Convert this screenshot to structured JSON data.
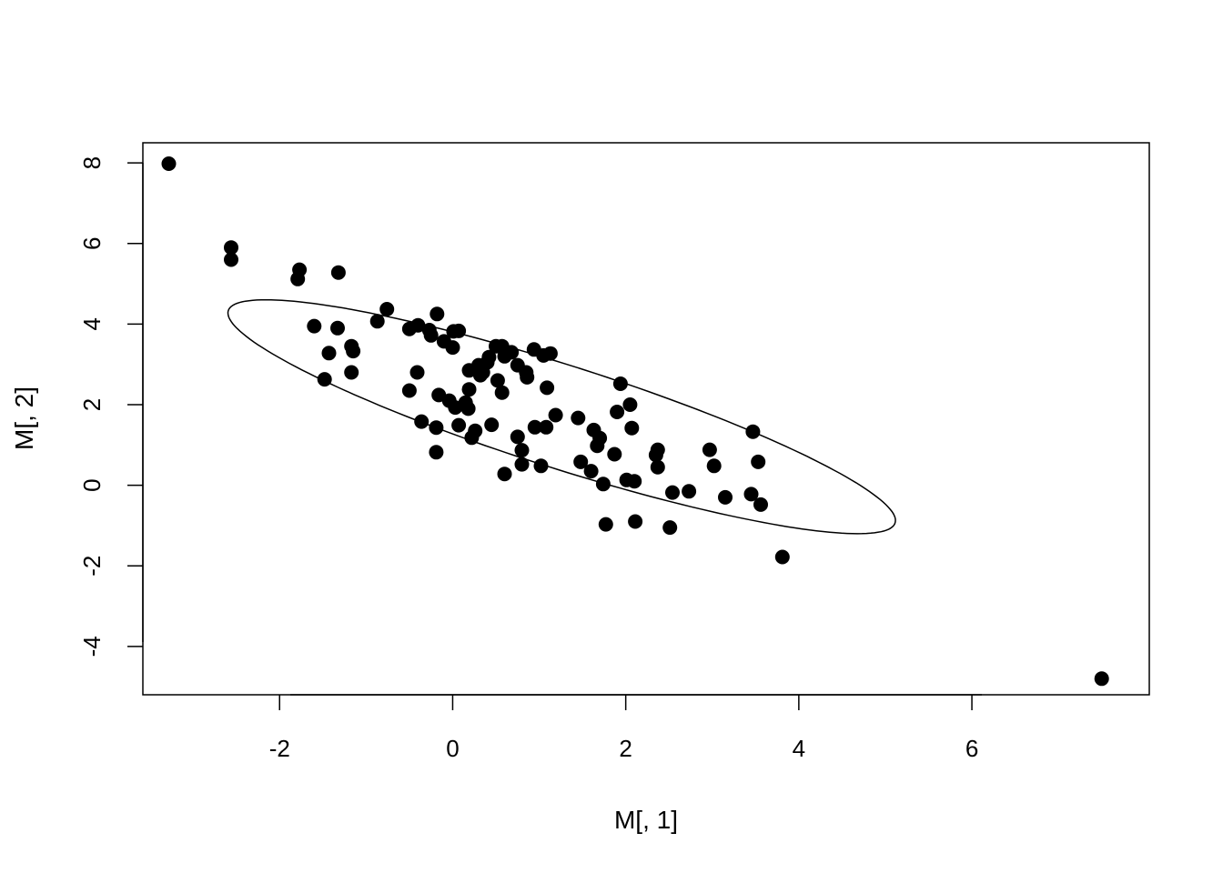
{
  "chart_data": {
    "type": "scatter",
    "title": "",
    "xlabel": "M[, 1]",
    "ylabel": "M[, 2]",
    "xlim": [
      -3.58,
      8.05
    ],
    "ylim": [
      -5.2,
      8.5
    ],
    "x_ticks": [
      -2,
      0,
      2,
      4,
      6
    ],
    "x_tick_labels": [
      "-2",
      "0",
      "2",
      "4",
      "6"
    ],
    "y_ticks": [
      -4,
      -2,
      0,
      2,
      4,
      6,
      8
    ],
    "y_tick_labels": [
      "-4",
      "-2",
      "0",
      "2",
      "4",
      "6",
      "8"
    ],
    "grid": false,
    "legend": "none",
    "marker_color": "#000000",
    "ellipse": {
      "center": [
        1.26,
        1.7
      ],
      "semi_major": 4.7,
      "semi_minor": 1.1,
      "angle_deg": -36
    },
    "points": [
      {
        "x": -3.28,
        "y": 7.98
      },
      {
        "x": 7.5,
        "y": -4.8
      },
      {
        "x": -2.56,
        "y": 5.9
      },
      {
        "x": -2.56,
        "y": 5.6
      },
      {
        "x": -1.77,
        "y": 5.35
      },
      {
        "x": -1.79,
        "y": 5.12
      },
      {
        "x": -1.32,
        "y": 5.28
      },
      {
        "x": -1.6,
        "y": 3.95
      },
      {
        "x": -1.33,
        "y": 3.9
      },
      {
        "x": -1.43,
        "y": 3.28
      },
      {
        "x": -1.17,
        "y": 3.45
      },
      {
        "x": -1.15,
        "y": 3.33
      },
      {
        "x": -1.48,
        "y": 2.63
      },
      {
        "x": -1.17,
        "y": 2.8
      },
      {
        "x": -0.87,
        "y": 4.07
      },
      {
        "x": -0.76,
        "y": 4.37
      },
      {
        "x": -0.5,
        "y": 3.88
      },
      {
        "x": -0.4,
        "y": 3.97
      },
      {
        "x": -0.27,
        "y": 3.85
      },
      {
        "x": -0.25,
        "y": 3.72
      },
      {
        "x": -0.18,
        "y": 4.25
      },
      {
        "x": -0.1,
        "y": 3.57
      },
      {
        "x": 0.0,
        "y": 3.42
      },
      {
        "x": 0.01,
        "y": 3.82
      },
      {
        "x": 0.07,
        "y": 3.83
      },
      {
        "x": -0.41,
        "y": 2.8
      },
      {
        "x": -0.5,
        "y": 2.35
      },
      {
        "x": -0.36,
        "y": 1.58
      },
      {
        "x": -0.16,
        "y": 2.24
      },
      {
        "x": -0.04,
        "y": 2.1
      },
      {
        "x": 0.03,
        "y": 1.93
      },
      {
        "x": 0.15,
        "y": 2.05
      },
      {
        "x": 0.18,
        "y": 1.9
      },
      {
        "x": -0.19,
        "y": 1.43
      },
      {
        "x": 0.07,
        "y": 1.49
      },
      {
        "x": 0.26,
        "y": 1.35
      },
      {
        "x": 0.22,
        "y": 1.18
      },
      {
        "x": -0.19,
        "y": 0.82
      },
      {
        "x": 0.19,
        "y": 2.85
      },
      {
        "x": 0.19,
        "y": 2.38
      },
      {
        "x": 0.3,
        "y": 2.98
      },
      {
        "x": 0.32,
        "y": 2.73
      },
      {
        "x": 0.35,
        "y": 2.8
      },
      {
        "x": 0.4,
        "y": 3.05
      },
      {
        "x": 0.42,
        "y": 3.18
      },
      {
        "x": 0.5,
        "y": 3.45
      },
      {
        "x": 0.57,
        "y": 3.45
      },
      {
        "x": 0.6,
        "y": 3.2
      },
      {
        "x": 0.68,
        "y": 3.3
      },
      {
        "x": 0.75,
        "y": 2.98
      },
      {
        "x": 0.85,
        "y": 2.8
      },
      {
        "x": 0.86,
        "y": 2.68
      },
      {
        "x": 0.52,
        "y": 2.6
      },
      {
        "x": 0.57,
        "y": 2.3
      },
      {
        "x": 0.45,
        "y": 1.5
      },
      {
        "x": 0.94,
        "y": 3.37
      },
      {
        "x": 1.05,
        "y": 3.22
      },
      {
        "x": 1.13,
        "y": 3.27
      },
      {
        "x": 1.09,
        "y": 2.42
      },
      {
        "x": 0.95,
        "y": 1.44
      },
      {
        "x": 1.08,
        "y": 1.44
      },
      {
        "x": 1.19,
        "y": 1.74
      },
      {
        "x": 0.75,
        "y": 1.2
      },
      {
        "x": 0.8,
        "y": 0.87
      },
      {
        "x": 0.8,
        "y": 0.52
      },
      {
        "x": 1.02,
        "y": 0.48
      },
      {
        "x": 0.6,
        "y": 0.28
      },
      {
        "x": 1.45,
        "y": 1.67
      },
      {
        "x": 1.63,
        "y": 1.37
      },
      {
        "x": 1.7,
        "y": 1.17
      },
      {
        "x": 1.67,
        "y": 0.98
      },
      {
        "x": 1.48,
        "y": 0.58
      },
      {
        "x": 1.6,
        "y": 0.35
      },
      {
        "x": 1.74,
        "y": 0.03
      },
      {
        "x": 1.77,
        "y": -0.97
      },
      {
        "x": 1.94,
        "y": 2.52
      },
      {
        "x": 2.05,
        "y": 2.0
      },
      {
        "x": 1.9,
        "y": 1.82
      },
      {
        "x": 2.07,
        "y": 1.42
      },
      {
        "x": 1.87,
        "y": 0.77
      },
      {
        "x": 2.01,
        "y": 0.13
      },
      {
        "x": 2.1,
        "y": 0.1
      },
      {
        "x": 2.11,
        "y": -0.9
      },
      {
        "x": 2.37,
        "y": 0.88
      },
      {
        "x": 2.35,
        "y": 0.75
      },
      {
        "x": 2.37,
        "y": 0.45
      },
      {
        "x": 2.54,
        "y": -0.18
      },
      {
        "x": 2.51,
        "y": -1.05
      },
      {
        "x": 2.73,
        "y": -0.15
      },
      {
        "x": 2.97,
        "y": 0.88
      },
      {
        "x": 3.02,
        "y": 0.48
      },
      {
        "x": 3.15,
        "y": -0.3
      },
      {
        "x": 3.47,
        "y": 1.33
      },
      {
        "x": 3.53,
        "y": 0.58
      },
      {
        "x": 3.45,
        "y": -0.22
      },
      {
        "x": 3.56,
        "y": -0.48
      },
      {
        "x": 3.81,
        "y": -1.78
      }
    ]
  }
}
